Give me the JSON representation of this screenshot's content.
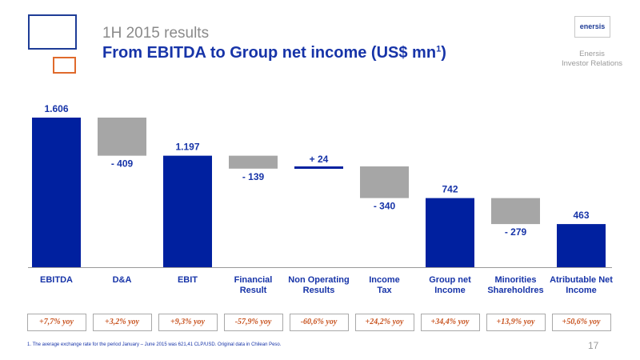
{
  "header": {
    "title_line1": "1H 2015 results",
    "title_line2": "From EBITDA to Group net income (US$ mn",
    "title_sup": "1",
    "title_close": ")",
    "logo_text": "enersis",
    "ir_line1": "Enersis",
    "ir_line2": "Investor Relations"
  },
  "colors": {
    "total": "#00209f",
    "delta": "#a6a6a6",
    "label": "#1734a8",
    "yoy": "#c8531f"
  },
  "chart_data": {
    "type": "bar",
    "subtype": "waterfall",
    "categories": [
      "EBITDA",
      "D&A",
      "EBIT",
      "Financial Result",
      "Non Operating Results",
      "Income Tax",
      "Group net Income",
      "Minorities Shareholdres",
      "Atributable Net Income"
    ],
    "category_lines": [
      [
        "EBITDA"
      ],
      [
        "D&A"
      ],
      [
        "EBIT"
      ],
      [
        "Financial",
        "Result"
      ],
      [
        "Non Operating",
        "Results"
      ],
      [
        "Income",
        "Tax"
      ],
      [
        "Group net",
        "Income"
      ],
      [
        "Minorities",
        "Shareholdres"
      ],
      [
        "Atributable Net",
        "Income"
      ]
    ],
    "kinds": [
      "total",
      "delta",
      "total",
      "delta",
      "delta",
      "delta",
      "total",
      "delta",
      "total"
    ],
    "values": [
      1606,
      -409,
      1197,
      -139,
      24,
      -340,
      742,
      -279,
      463
    ],
    "value_labels": [
      "1.606",
      "- 409",
      "1.197",
      "- 139",
      "+ 24",
      "- 340",
      "742",
      "- 279",
      "463"
    ],
    "ylim": [
      0,
      1606
    ]
  },
  "yoy": [
    "+7,7% yoy",
    "+3,2% yoy",
    "+9,3% yoy",
    "-57,9% yoy",
    "-60,6% yoy",
    "+24,2% yoy",
    "+34,4% yoy",
    "+13,9% yoy",
    "+50,6% yoy"
  ],
  "footnote": "1.     The average exchange rate for the period January – June 2015 was 621,41 CLP/USD. Original data in Chilean Peso.",
  "page_number": "17"
}
